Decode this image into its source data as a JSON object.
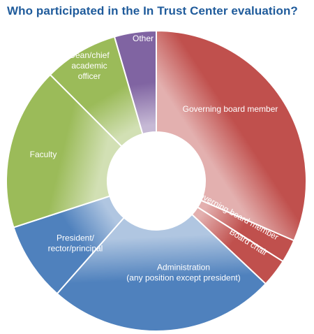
{
  "chart_data": {
    "type": "pie",
    "style": "donut",
    "title": "Who participated in the In Trust Center evaluation?",
    "categories": [
      "Governing board member",
      "Nongoverning board member",
      "Board chair",
      "Administration (any position except president)",
      "President/ rector/principal",
      "Faculty",
      "Dean/chief academic officer",
      "Other"
    ],
    "values": [
      31.5,
      2.5,
      3.0,
      24.5,
      8.5,
      17.5,
      8.0,
      4.5
    ],
    "colors": [
      "#c0504d",
      "#c0504d",
      "#c0504d",
      "#4f81bd",
      "#4f81bd",
      "#9bbb59",
      "#9bbb59",
      "#8064a2"
    ],
    "display_labels": [
      [
        "Governing board member"
      ],
      [
        "Nongoverning board member"
      ],
      [
        "Board chair"
      ],
      [
        "Administration",
        "(any position except president)"
      ],
      [
        "President/",
        "rector/principal"
      ],
      [
        "Faculty"
      ],
      [
        "Dean/chief",
        "academic",
        "officer"
      ],
      [
        "Other"
      ]
    ],
    "legend": "none"
  }
}
